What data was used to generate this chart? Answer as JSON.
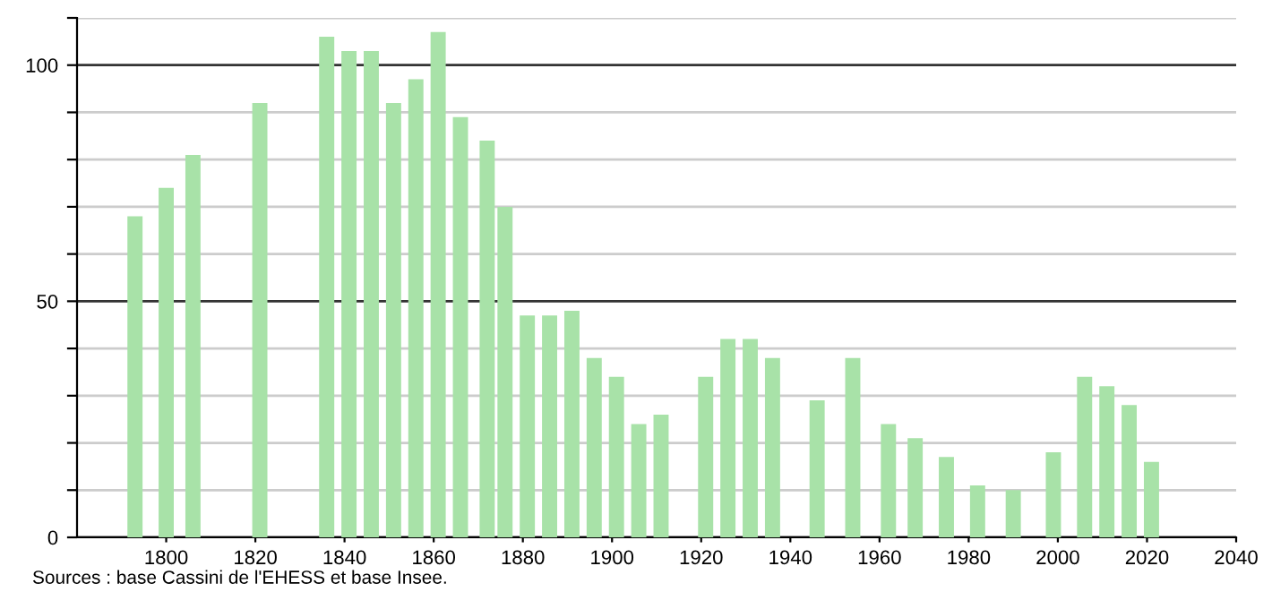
{
  "chart_data": {
    "type": "bar",
    "x": [
      1793,
      1800,
      1806,
      1821,
      1836,
      1841,
      1846,
      1851,
      1856,
      1861,
      1866,
      1872,
      1876,
      1881,
      1886,
      1891,
      1896,
      1901,
      1906,
      1911,
      1921,
      1926,
      1931,
      1936,
      1946,
      1954,
      1962,
      1968,
      1975,
      1982,
      1990,
      1999,
      2006,
      2011,
      2016,
      2021
    ],
    "values": [
      68,
      74,
      81,
      92,
      106,
      103,
      103,
      92,
      97,
      107,
      89,
      84,
      70,
      47,
      47,
      48,
      38,
      34,
      24,
      26,
      34,
      42,
      42,
      38,
      29,
      38,
      24,
      21,
      17,
      11,
      10,
      18,
      34,
      32,
      28,
      16
    ],
    "color": "#a8e2a8",
    "xlim": [
      1780,
      2040
    ],
    "xticks": [
      1800,
      1820,
      1840,
      1860,
      1880,
      1900,
      1920,
      1940,
      1960,
      1980,
      2000,
      2020,
      2040
    ],
    "ylim": [
      0,
      110
    ],
    "yticks": [
      0,
      {
        "value": 10,
        "label": null
      },
      {
        "value": 20,
        "label": null
      },
      {
        "value": 30,
        "label": null
      },
      {
        "value": 40,
        "label": null
      },
      50,
      {
        "value": 60,
        "label": null
      },
      {
        "value": 70,
        "label": null
      },
      {
        "value": 80,
        "label": null
      },
      {
        "value": 90,
        "label": null
      },
      100,
      {
        "value": 110,
        "label": null
      }
    ],
    "grid": "y",
    "annotations": [
      "Sources : base Cassini de l'EHESS et base Insee."
    ]
  }
}
